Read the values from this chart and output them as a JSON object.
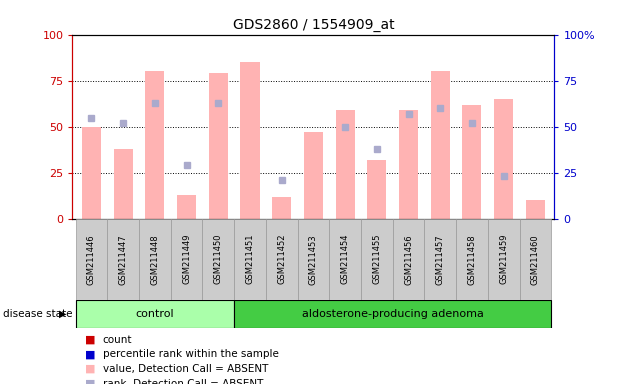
{
  "title": "GDS2860 / 1554909_at",
  "samples": [
    "GSM211446",
    "GSM211447",
    "GSM211448",
    "GSM211449",
    "GSM211450",
    "GSM211451",
    "GSM211452",
    "GSM211453",
    "GSM211454",
    "GSM211455",
    "GSM211456",
    "GSM211457",
    "GSM211458",
    "GSM211459",
    "GSM211460"
  ],
  "bar_values": [
    50,
    38,
    80,
    13,
    79,
    85,
    12,
    47,
    59,
    32,
    59,
    80,
    62,
    65,
    10
  ],
  "dot_values": [
    55,
    52,
    63,
    29,
    63,
    null,
    21,
    null,
    50,
    38,
    57,
    60,
    52,
    23,
    null
  ],
  "control_count": 5,
  "ylim": [
    0,
    100
  ],
  "bar_color_absent": "#FFB3B3",
  "dot_color_absent": "#AAAACC",
  "left_axis_color": "#CC0000",
  "right_axis_color": "#0000CC",
  "control_color": "#AAFFAA",
  "adenoma_color": "#44CC44",
  "yticks": [
    0,
    25,
    50,
    75,
    100
  ],
  "right_ytick_labels": [
    "0",
    "25",
    "50",
    "75",
    "100%"
  ],
  "disease_state_label": "disease state",
  "control_label": "control",
  "adenoma_label": "aldosterone-producing adenoma",
  "legend_colors": [
    "#CC0000",
    "#0000CC",
    "#FFB3B3",
    "#AAAACC"
  ],
  "legend_labels": [
    "count",
    "percentile rank within the sample",
    "value, Detection Call = ABSENT",
    "rank, Detection Call = ABSENT"
  ]
}
